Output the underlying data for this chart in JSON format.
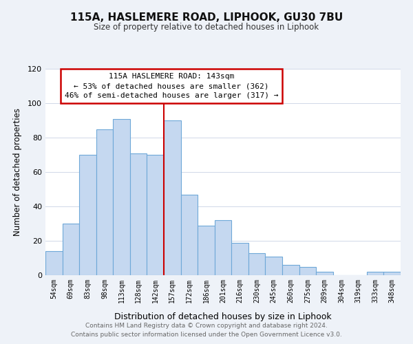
{
  "title": "115A, HASLEMERE ROAD, LIPHOOK, GU30 7BU",
  "subtitle": "Size of property relative to detached houses in Liphook",
  "xlabel": "Distribution of detached houses by size in Liphook",
  "ylabel": "Number of detached properties",
  "bar_labels": [
    "54sqm",
    "69sqm",
    "83sqm",
    "98sqm",
    "113sqm",
    "128sqm",
    "142sqm",
    "157sqm",
    "172sqm",
    "186sqm",
    "201sqm",
    "216sqm",
    "230sqm",
    "245sqm",
    "260sqm",
    "275sqm",
    "289sqm",
    "304sqm",
    "319sqm",
    "333sqm",
    "348sqm"
  ],
  "bar_values": [
    14,
    30,
    70,
    85,
    91,
    71,
    70,
    90,
    47,
    29,
    32,
    19,
    13,
    11,
    6,
    5,
    2,
    0,
    0,
    2,
    2
  ],
  "bar_color": "#c5d8f0",
  "bar_edge_color": "#6ea8d8",
  "vline_x_index": 6,
  "vline_color": "#cc0000",
  "ylim": [
    0,
    120
  ],
  "yticks": [
    0,
    20,
    40,
    60,
    80,
    100,
    120
  ],
  "annotation_title": "115A HASLEMERE ROAD: 143sqm",
  "annotation_line1": "← 53% of detached houses are smaller (362)",
  "annotation_line2": "46% of semi-detached houses are larger (317) →",
  "annotation_box_color": "#ffffff",
  "annotation_box_edge": "#cc0000",
  "footer_line1": "Contains HM Land Registry data © Crown copyright and database right 2024.",
  "footer_line2": "Contains public sector information licensed under the Open Government Licence v3.0.",
  "background_color": "#eef2f8",
  "plot_bg_color": "#ffffff",
  "grid_color": "#d0d8e8"
}
